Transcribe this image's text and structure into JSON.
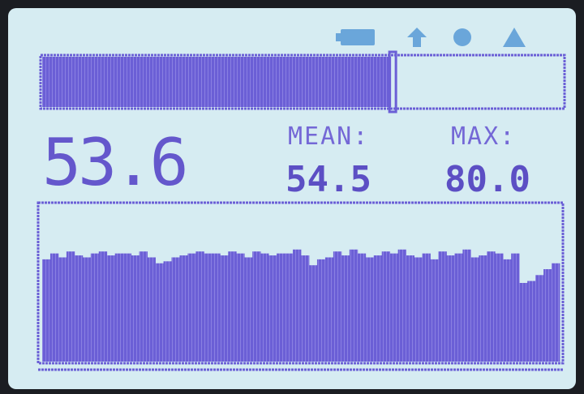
{
  "display": {
    "reading": "53.6",
    "mean_label": "MEAN:",
    "mean_value": "54.5",
    "max_label": "MAX:",
    "max_value": "80.0",
    "history": [
      52,
      55,
      53,
      56,
      54,
      53,
      55,
      56,
      54,
      55,
      55,
      54,
      56,
      53,
      50,
      51,
      53,
      54,
      55,
      56,
      55,
      55,
      54,
      56,
      55,
      53,
      56,
      55,
      54,
      55,
      55,
      57,
      54,
      49,
      52,
      53,
      56,
      54,
      57,
      55,
      53,
      54,
      56,
      55,
      57,
      54,
      53,
      55,
      52,
      56,
      54,
      55,
      57,
      53,
      54,
      56,
      55,
      52,
      55,
      40,
      41,
      44,
      47,
      50
    ]
  }
}
